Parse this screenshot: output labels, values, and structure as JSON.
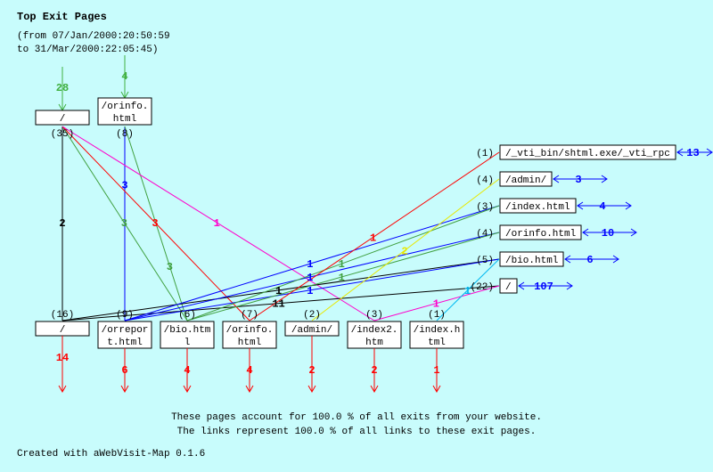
{
  "header": {
    "title": "Top Exit Pages",
    "range_line1": "(from 07/Jan/2000:20:50:59",
    "range_line2": "to 31/Mar/2000:22:05:45)"
  },
  "colors": {
    "background": "#c8fcfc",
    "entry": "#40b040",
    "exit": "#ff0000",
    "self": "#0000ff"
  },
  "top_nodes": [
    {
      "id": "t_root",
      "lines": [
        "/"
      ],
      "count": "(35)",
      "entry": "28"
    },
    {
      "id": "t_orinfo",
      "lines": [
        "/orinfo.",
        "html"
      ],
      "count": "(8)",
      "entry": "4"
    }
  ],
  "bottom_nodes": [
    {
      "id": "b_root",
      "lines": [
        "/"
      ],
      "count": "(16)",
      "exit": "14"
    },
    {
      "id": "b_orreport",
      "lines": [
        "/orrepor",
        "t.html"
      ],
      "count": "(9)",
      "exit": "6"
    },
    {
      "id": "b_bio",
      "lines": [
        "/bio.htm",
        "l"
      ],
      "count": "(6)",
      "exit": "4"
    },
    {
      "id": "b_orinfo",
      "lines": [
        "/orinfo.",
        "html"
      ],
      "count": "(7)",
      "exit": "4"
    },
    {
      "id": "b_admin",
      "lines": [
        "/admin/"
      ],
      "count": "(2)",
      "exit": "2"
    },
    {
      "id": "b_index2",
      "lines": [
        "/index2.",
        "htm"
      ],
      "count": "(3)",
      "exit": "2"
    },
    {
      "id": "b_indexh",
      "lines": [
        "/index.h",
        "tml"
      ],
      "count": "(1)",
      "exit": "1"
    }
  ],
  "right_nodes": [
    {
      "id": "r_vti",
      "label": "/_vti_bin/shtml.exe/_vti_rpc",
      "count": "(1)",
      "self": "13"
    },
    {
      "id": "r_admin",
      "label": "/admin/",
      "count": "(4)",
      "self": "3"
    },
    {
      "id": "r_index",
      "label": "/index.html",
      "count": "(3)",
      "self": "4"
    },
    {
      "id": "r_orinfo",
      "label": "/orinfo.html",
      "count": "(4)",
      "self": "10"
    },
    {
      "id": "r_bio",
      "label": "/bio.html",
      "count": "(5)",
      "self": "6"
    },
    {
      "id": "r_root",
      "label": "/",
      "count": "(22)",
      "self": "107"
    }
  ],
  "edges": [
    {
      "from": "t_root",
      "to": "b_root",
      "color": "#000000",
      "label": "2"
    },
    {
      "from": "t_orinfo",
      "to": "b_orreport",
      "color": "#0000ff",
      "label": "3"
    },
    {
      "from": "t_root",
      "to": "b_bio",
      "color": "#40a040",
      "label": "3"
    },
    {
      "from": "t_orinfo",
      "to": "b_bio",
      "color": "#40a040",
      "label": "3"
    },
    {
      "from": "t_root",
      "to": "b_orinfo",
      "color": "#ff0000",
      "label": "3"
    },
    {
      "from": "t_root",
      "to": "b_index2",
      "color": "#ff00cc",
      "label": "1"
    },
    {
      "from": "b_root",
      "to": "r_bio",
      "color": "#000000",
      "label": "1"
    },
    {
      "from": "b_root",
      "to": "r_root",
      "color": "#000000",
      "label": "11"
    },
    {
      "from": "b_orreport",
      "to": "r_index",
      "color": "#0000ff",
      "label": "1"
    },
    {
      "from": "b_orreport",
      "to": "r_orinfo",
      "color": "#0000ff",
      "label": "1"
    },
    {
      "from": "b_orreport",
      "to": "r_bio",
      "color": "#0000ff",
      "label": "1"
    },
    {
      "from": "b_bio",
      "to": "r_index",
      "color": "#40a040",
      "label": "1"
    },
    {
      "from": "b_bio",
      "to": "r_orinfo",
      "color": "#40a040",
      "label": "1"
    },
    {
      "from": "b_orinfo",
      "to": "r_vti",
      "color": "#ff0000",
      "label": "1"
    },
    {
      "from": "b_admin",
      "to": "r_admin",
      "color": "#e8e800",
      "label": "2"
    },
    {
      "from": "b_index2",
      "to": "r_root",
      "color": "#ff00cc",
      "label": "1"
    },
    {
      "from": "b_indexh",
      "to": "r_bio",
      "color": "#00b8f0",
      "label": "1"
    }
  ],
  "footer": {
    "line1": "These pages account for 100.0 % of all exits from your website.",
    "line2": "The links represent 100.0 % of all links to these exit pages.",
    "credit": "Created with aWebVisit-Map 0.1.6"
  }
}
